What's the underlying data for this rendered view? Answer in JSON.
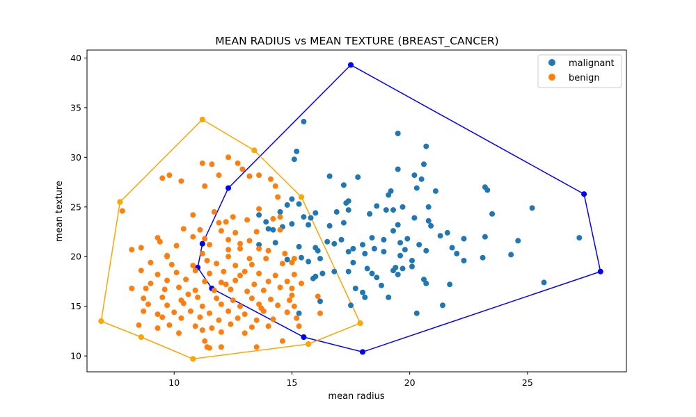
{
  "chart_data": {
    "type": "scatter",
    "title": "MEAN RADIUS vs MEAN TEXTURE (BREAST_CANCER)",
    "xlabel": "mean radius",
    "ylabel": "mean texture",
    "xlim": [
      6.3,
      29.2
    ],
    "ylim": [
      8.4,
      40.8
    ],
    "xticks": [
      10,
      15,
      20,
      25
    ],
    "yticks": [
      10,
      15,
      20,
      25,
      30,
      35,
      40
    ],
    "grid": false,
    "legend_position": "top-right",
    "series": [
      {
        "name": "malignant",
        "color": "#1f77b4",
        "hull_color": "#0000ff",
        "hull": [
          [
            17.5,
            39.3
          ],
          [
            27.4,
            26.3
          ],
          [
            28.1,
            18.5
          ],
          [
            18.0,
            10.4
          ],
          [
            15.5,
            11.9
          ],
          [
            11.6,
            16.8
          ],
          [
            11.0,
            18.9
          ],
          [
            11.2,
            21.3
          ],
          [
            12.3,
            26.9
          ]
        ],
        "points": [
          [
            17.5,
            39.3
          ],
          [
            15.5,
            33.6
          ],
          [
            19.5,
            32.4
          ],
          [
            20.7,
            31.1
          ],
          [
            15.2,
            30.6
          ],
          [
            15.1,
            29.8
          ],
          [
            20.6,
            29.3
          ],
          [
            19.5,
            28.8
          ],
          [
            20.2,
            28.2
          ],
          [
            17.8,
            28.0
          ],
          [
            16.6,
            28.1
          ],
          [
            20.5,
            27.8
          ],
          [
            17.2,
            27.2
          ],
          [
            20.3,
            26.9
          ],
          [
            21.1,
            26.6
          ],
          [
            23.2,
            27.0
          ],
          [
            23.3,
            26.7
          ],
          [
            19.2,
            26.6
          ],
          [
            19.1,
            26.2
          ],
          [
            12.3,
            26.9
          ],
          [
            15.0,
            25.8
          ],
          [
            15.3,
            25.3
          ],
          [
            18.6,
            25.1
          ],
          [
            17.4,
            25.6
          ],
          [
            17.3,
            25.4
          ],
          [
            20.8,
            25.0
          ],
          [
            25.2,
            24.9
          ],
          [
            19.7,
            25.0
          ],
          [
            14.8,
            25.2
          ],
          [
            19.3,
            24.7
          ],
          [
            19.0,
            24.7
          ],
          [
            23.5,
            24.3
          ],
          [
            17.4,
            24.7
          ],
          [
            14.5,
            24.5
          ],
          [
            16.9,
            24.5
          ],
          [
            16.0,
            24.4
          ],
          [
            18.3,
            24.3
          ],
          [
            20.2,
            23.9
          ],
          [
            13.6,
            24.2
          ],
          [
            15.5,
            24.0
          ],
          [
            17.2,
            23.4
          ],
          [
            15.8,
            23.9
          ],
          [
            16.6,
            23.1
          ],
          [
            20.9,
            23.1
          ],
          [
            19.5,
            23.2
          ],
          [
            13.9,
            23.5
          ],
          [
            14.0,
            22.8
          ],
          [
            15.0,
            23.3
          ],
          [
            20.8,
            23.6
          ],
          [
            14.6,
            23.0
          ],
          [
            15.7,
            23.2
          ],
          [
            14.2,
            22.7
          ],
          [
            19.3,
            22.6
          ],
          [
            21.6,
            22.4
          ],
          [
            22.3,
            21.8
          ],
          [
            23.2,
            22.0
          ],
          [
            21.3,
            22.1
          ],
          [
            18.9,
            21.7
          ],
          [
            17.1,
            21.7
          ],
          [
            16.5,
            21.5
          ],
          [
            19.9,
            21.8
          ],
          [
            18.4,
            21.9
          ],
          [
            24.6,
            21.6
          ],
          [
            27.2,
            21.9
          ],
          [
            19.6,
            21.4
          ],
          [
            16.8,
            21.3
          ],
          [
            20.4,
            21.2
          ],
          [
            18.0,
            21.2
          ],
          [
            14.3,
            21.4
          ],
          [
            15.3,
            21.0
          ],
          [
            13.6,
            21.2
          ],
          [
            16.0,
            20.9
          ],
          [
            18.5,
            20.8
          ],
          [
            17.6,
            20.8
          ],
          [
            21.8,
            20.9
          ],
          [
            19.8,
            20.7
          ],
          [
            18.9,
            20.5
          ],
          [
            16.1,
            20.6
          ],
          [
            17.4,
            20.5
          ],
          [
            18.1,
            20.3
          ],
          [
            20.7,
            20.6
          ],
          [
            22.0,
            20.3
          ],
          [
            24.3,
            20.2
          ],
          [
            19.6,
            20.1
          ],
          [
            15.4,
            19.9
          ],
          [
            16.2,
            19.8
          ],
          [
            14.8,
            19.7
          ],
          [
            17.6,
            19.4
          ],
          [
            20.1,
            19.6
          ],
          [
            15.7,
            19.5
          ],
          [
            23.1,
            19.9
          ],
          [
            22.3,
            19.6
          ],
          [
            20.1,
            19.0
          ],
          [
            19.4,
            18.9
          ],
          [
            18.2,
            18.8
          ],
          [
            17.4,
            18.5
          ],
          [
            16.8,
            18.5
          ],
          [
            16.3,
            18.3
          ],
          [
            15.9,
            17.8
          ],
          [
            16.0,
            18.0
          ],
          [
            19.7,
            18.8
          ],
          [
            19.3,
            18.6
          ],
          [
            19.5,
            18.2
          ],
          [
            18.4,
            18.3
          ],
          [
            18.6,
            17.9
          ],
          [
            18.8,
            17.1
          ],
          [
            20.6,
            17.7
          ],
          [
            20.7,
            17.3
          ],
          [
            21.7,
            17.2
          ],
          [
            25.7,
            17.4
          ],
          [
            17.7,
            16.8
          ],
          [
            18.0,
            16.4
          ],
          [
            18.1,
            15.9
          ],
          [
            19.1,
            15.9
          ],
          [
            16.2,
            15.5
          ],
          [
            17.5,
            15.1
          ],
          [
            21.4,
            15.1
          ],
          [
            20.3,
            14.3
          ],
          [
            15.3,
            14.3
          ],
          [
            15.5,
            11.9
          ],
          [
            18.0,
            10.4
          ],
          [
            27.4,
            26.3
          ],
          [
            28.1,
            18.5
          ],
          [
            11.6,
            16.8
          ],
          [
            11.0,
            18.9
          ],
          [
            11.2,
            21.3
          ]
        ]
      },
      {
        "name": "benign",
        "color": "#ff7f0e",
        "hull_color": "#ffa500",
        "hull": [
          [
            11.2,
            33.8
          ],
          [
            13.4,
            30.7
          ],
          [
            15.4,
            26.0
          ],
          [
            17.9,
            13.3
          ],
          [
            15.7,
            11.2
          ],
          [
            10.8,
            9.7
          ],
          [
            8.6,
            11.9
          ],
          [
            6.9,
            13.5
          ],
          [
            7.7,
            25.5
          ]
        ],
        "points": [
          [
            11.2,
            33.8
          ],
          [
            13.4,
            30.7
          ],
          [
            12.3,
            30.0
          ],
          [
            11.2,
            29.4
          ],
          [
            12.7,
            29.4
          ],
          [
            11.6,
            29.3
          ],
          [
            12.9,
            28.8
          ],
          [
            9.8,
            28.2
          ],
          [
            9.5,
            27.9
          ],
          [
            11.9,
            28.2
          ],
          [
            13.2,
            28.1
          ],
          [
            13.6,
            28.2
          ],
          [
            14.1,
            27.8
          ],
          [
            10.3,
            27.6
          ],
          [
            11.3,
            27.1
          ],
          [
            14.3,
            27.1
          ],
          [
            7.7,
            25.5
          ],
          [
            14.4,
            26.0
          ],
          [
            15.4,
            26.0
          ],
          [
            7.8,
            24.6
          ],
          [
            11.7,
            24.5
          ],
          [
            12.5,
            24.0
          ],
          [
            13.6,
            24.8
          ],
          [
            14.5,
            24.0
          ],
          [
            14.2,
            23.8
          ],
          [
            10.8,
            24.2
          ],
          [
            12.2,
            23.5
          ],
          [
            13.1,
            23.7
          ],
          [
            11.9,
            23.4
          ],
          [
            10.4,
            22.8
          ],
          [
            11.1,
            22.7
          ],
          [
            12.0,
            22.6
          ],
          [
            12.6,
            22.4
          ],
          [
            13.5,
            22.5
          ],
          [
            14.5,
            22.7
          ],
          [
            10.8,
            22.0
          ],
          [
            11.3,
            21.8
          ],
          [
            12.3,
            21.7
          ],
          [
            13.2,
            21.6
          ],
          [
            12.8,
            21.3
          ],
          [
            9.3,
            21.9
          ],
          [
            9.4,
            21.5
          ],
          [
            10.1,
            21.1
          ],
          [
            11.5,
            21.2
          ],
          [
            12.8,
            20.8
          ],
          [
            13.6,
            20.8
          ],
          [
            14.0,
            20.6
          ],
          [
            8.6,
            20.9
          ],
          [
            8.2,
            20.7
          ],
          [
            9.7,
            20.1
          ],
          [
            11.2,
            20.3
          ],
          [
            12.3,
            20.0
          ],
          [
            13.2,
            19.8
          ],
          [
            13.9,
            19.8
          ],
          [
            15.1,
            19.8
          ],
          [
            9.0,
            19.4
          ],
          [
            9.9,
            19.2
          ],
          [
            10.8,
            19.1
          ],
          [
            11.8,
            19.3
          ],
          [
            12.6,
            19.1
          ],
          [
            13.3,
            19.2
          ],
          [
            14.6,
            19.3
          ],
          [
            8.6,
            18.6
          ],
          [
            9.3,
            18.2
          ],
          [
            10.1,
            18.4
          ],
          [
            10.9,
            18.6
          ],
          [
            11.5,
            18.3
          ],
          [
            12.1,
            18.5
          ],
          [
            12.8,
            18.1
          ],
          [
            13.6,
            18.3
          ],
          [
            14.3,
            18.1
          ],
          [
            15.1,
            18.2
          ],
          [
            9.0,
            17.3
          ],
          [
            9.7,
            17.6
          ],
          [
            10.5,
            17.7
          ],
          [
            11.3,
            17.5
          ],
          [
            12.0,
            17.4
          ],
          [
            12.6,
            17.6
          ],
          [
            13.4,
            17.2
          ],
          [
            14.0,
            17.5
          ],
          [
            14.8,
            17.5
          ],
          [
            8.2,
            16.8
          ],
          [
            8.8,
            16.8
          ],
          [
            9.6,
            16.7
          ],
          [
            10.2,
            16.9
          ],
          [
            10.9,
            16.6
          ],
          [
            11.7,
            16.6
          ],
          [
            12.4,
            16.7
          ],
          [
            13.1,
            16.5
          ],
          [
            13.8,
            16.6
          ],
          [
            14.5,
            16.9
          ],
          [
            15.0,
            16.8
          ],
          [
            8.7,
            15.8
          ],
          [
            9.5,
            15.9
          ],
          [
            10.3,
            15.6
          ],
          [
            11.0,
            15.9
          ],
          [
            11.8,
            15.8
          ],
          [
            12.5,
            15.6
          ],
          [
            13.3,
            15.8
          ],
          [
            14.1,
            15.7
          ],
          [
            14.9,
            15.6
          ],
          [
            8.9,
            15.2
          ],
          [
            9.7,
            15.1
          ],
          [
            10.4,
            15.3
          ],
          [
            11.2,
            15.0
          ],
          [
            12.0,
            15.2
          ],
          [
            12.8,
            15.0
          ],
          [
            13.6,
            15.2
          ],
          [
            14.4,
            15.1
          ],
          [
            15.1,
            15.0
          ],
          [
            8.7,
            14.5
          ],
          [
            9.3,
            14.2
          ],
          [
            10.0,
            14.4
          ],
          [
            10.7,
            14.5
          ],
          [
            11.5,
            14.3
          ],
          [
            12.3,
            14.5
          ],
          [
            13.0,
            14.2
          ],
          [
            13.8,
            14.5
          ],
          [
            14.8,
            14.4
          ],
          [
            16.2,
            14.3
          ],
          [
            9.5,
            13.9
          ],
          [
            10.3,
            13.8
          ],
          [
            11.1,
            13.9
          ],
          [
            11.9,
            13.6
          ],
          [
            12.7,
            13.8
          ],
          [
            13.5,
            13.6
          ],
          [
            14.2,
            13.7
          ],
          [
            15.2,
            13.8
          ],
          [
            8.5,
            13.1
          ],
          [
            9.8,
            13.1
          ],
          [
            10.9,
            13.0
          ],
          [
            11.6,
            12.8
          ],
          [
            12.4,
            13.2
          ],
          [
            13.3,
            12.9
          ],
          [
            14.0,
            13.0
          ],
          [
            15.3,
            13.0
          ],
          [
            17.9,
            13.3
          ],
          [
            6.9,
            13.5
          ],
          [
            9.3,
            12.8
          ],
          [
            10.2,
            12.3
          ],
          [
            11.2,
            12.6
          ],
          [
            12.0,
            12.4
          ],
          [
            13.0,
            12.3
          ],
          [
            8.6,
            11.9
          ],
          [
            11.3,
            11.5
          ],
          [
            14.6,
            11.5
          ],
          [
            15.7,
            11.2
          ],
          [
            11.5,
            10.8
          ],
          [
            11.4,
            10.9
          ],
          [
            12.0,
            10.9
          ],
          [
            13.5,
            10.9
          ],
          [
            10.8,
            9.7
          ],
          [
            15.4,
            17.3
          ],
          [
            15.0,
            16.1
          ],
          [
            12.2,
            17.2
          ],
          [
            13.0,
            18.5
          ],
          [
            11.4,
            19.6
          ],
          [
            9.7,
            20.0
          ],
          [
            14.7,
            20.3
          ],
          [
            15.0,
            19.4
          ],
          [
            12.3,
            20.7
          ],
          [
            16.1,
            16.0
          ],
          [
            10.6,
            16.2
          ],
          [
            13.7,
            14.8
          ]
        ]
      }
    ]
  }
}
